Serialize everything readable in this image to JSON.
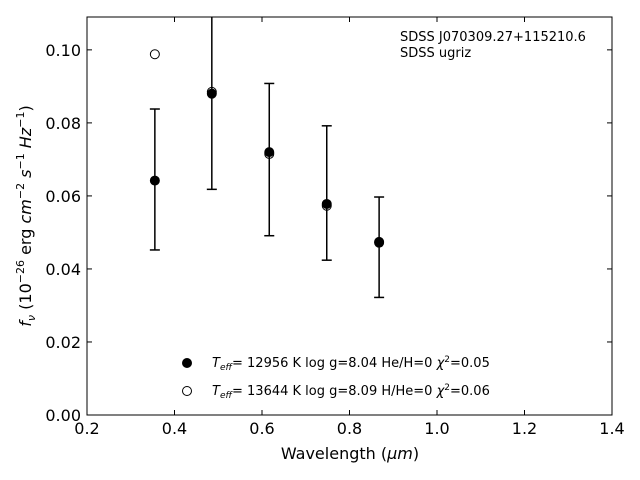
{
  "chart_data": {
    "type": "scatter",
    "xlabel_main": "Wavelength (",
    "xlabel_unit": "μm",
    "xlabel_close": ")",
    "ylabel": {
      "f": "f",
      "nu": "ν",
      "open": " (10",
      "exp1": "−26",
      "erg": " erg ",
      "cm": "cm",
      "exp2": "−2",
      "s": " s",
      "exp3": "−1",
      "hz": " Hz",
      "exp4": "−1",
      "close": ")"
    },
    "xlim": [
      0.2,
      1.4
    ],
    "ylim": [
      0.0,
      0.109
    ],
    "xticks": [
      0.2,
      0.4,
      0.6,
      0.8,
      1.0,
      1.2,
      1.4
    ],
    "yticks": [
      0.0,
      0.02,
      0.04,
      0.06,
      0.08,
      0.1
    ],
    "annotation": [
      "SDSS J070309.27+115210.6",
      "SDSS ugriz"
    ],
    "observed": {
      "x": [
        0.3551,
        0.4686,
        0.6166,
        0.748,
        0.8932
      ],
      "y": [
        0.0644,
        0.1091,
        0.07,
        0.0608,
        0.046
      ],
      "yerr_low": [
        0.019,
        0.0471,
        0.0208,
        0.0182,
        0.0136
      ],
      "yerr_high": [
        0.0194,
        0.0,
        0.0212,
        0.0184,
        0.0138
      ]
    },
    "series": [
      {
        "name": "Teff= 12956 K  log g=8.04  He/H=0  χ2=0.05",
        "label_parts": {
          "T": "T",
          "sub": "eff",
          "rest": "= 12956 K  log g=8.04  He/H=0  ",
          "chi": "χ",
          "sup": "2",
          "chi_val": "=0.05"
        },
        "marker": "filled",
        "x": [
          0.3551,
          0.4853,
          0.6166,
          0.748,
          0.8677
        ],
        "y": [
          0.0642,
          0.088,
          0.072,
          0.0578,
          0.0474
        ]
      },
      {
        "name": "Teff= 13644 K  log g=8.09  H/He=0  χ2=0.06",
        "label_parts": {
          "T": "T",
          "sub": "eff",
          "rest": "= 13644 K  log g=8.09  H/He=0  ",
          "chi": "χ",
          "sup": "2",
          "chi_val": "=0.06"
        },
        "marker": "open",
        "x": [
          0.3551,
          0.4853,
          0.6166,
          0.748,
          0.8677
        ],
        "y": [
          0.0988,
          0.0885,
          0.0715,
          0.0573,
          0.0472
        ]
      }
    ],
    "errorbars": {
      "x": [
        0.3551,
        0.4853,
        0.6166,
        0.748,
        0.8677
      ],
      "low": [
        0.0452,
        0.0618,
        0.0491,
        0.0424,
        0.0322
      ],
      "high": [
        0.0838,
        0.1095,
        0.0908,
        0.0792,
        0.0597
      ]
    },
    "grid": false,
    "legend_position": "lower-center",
    "colors": {
      "marker": "#000000",
      "axes": "#000000"
    }
  }
}
